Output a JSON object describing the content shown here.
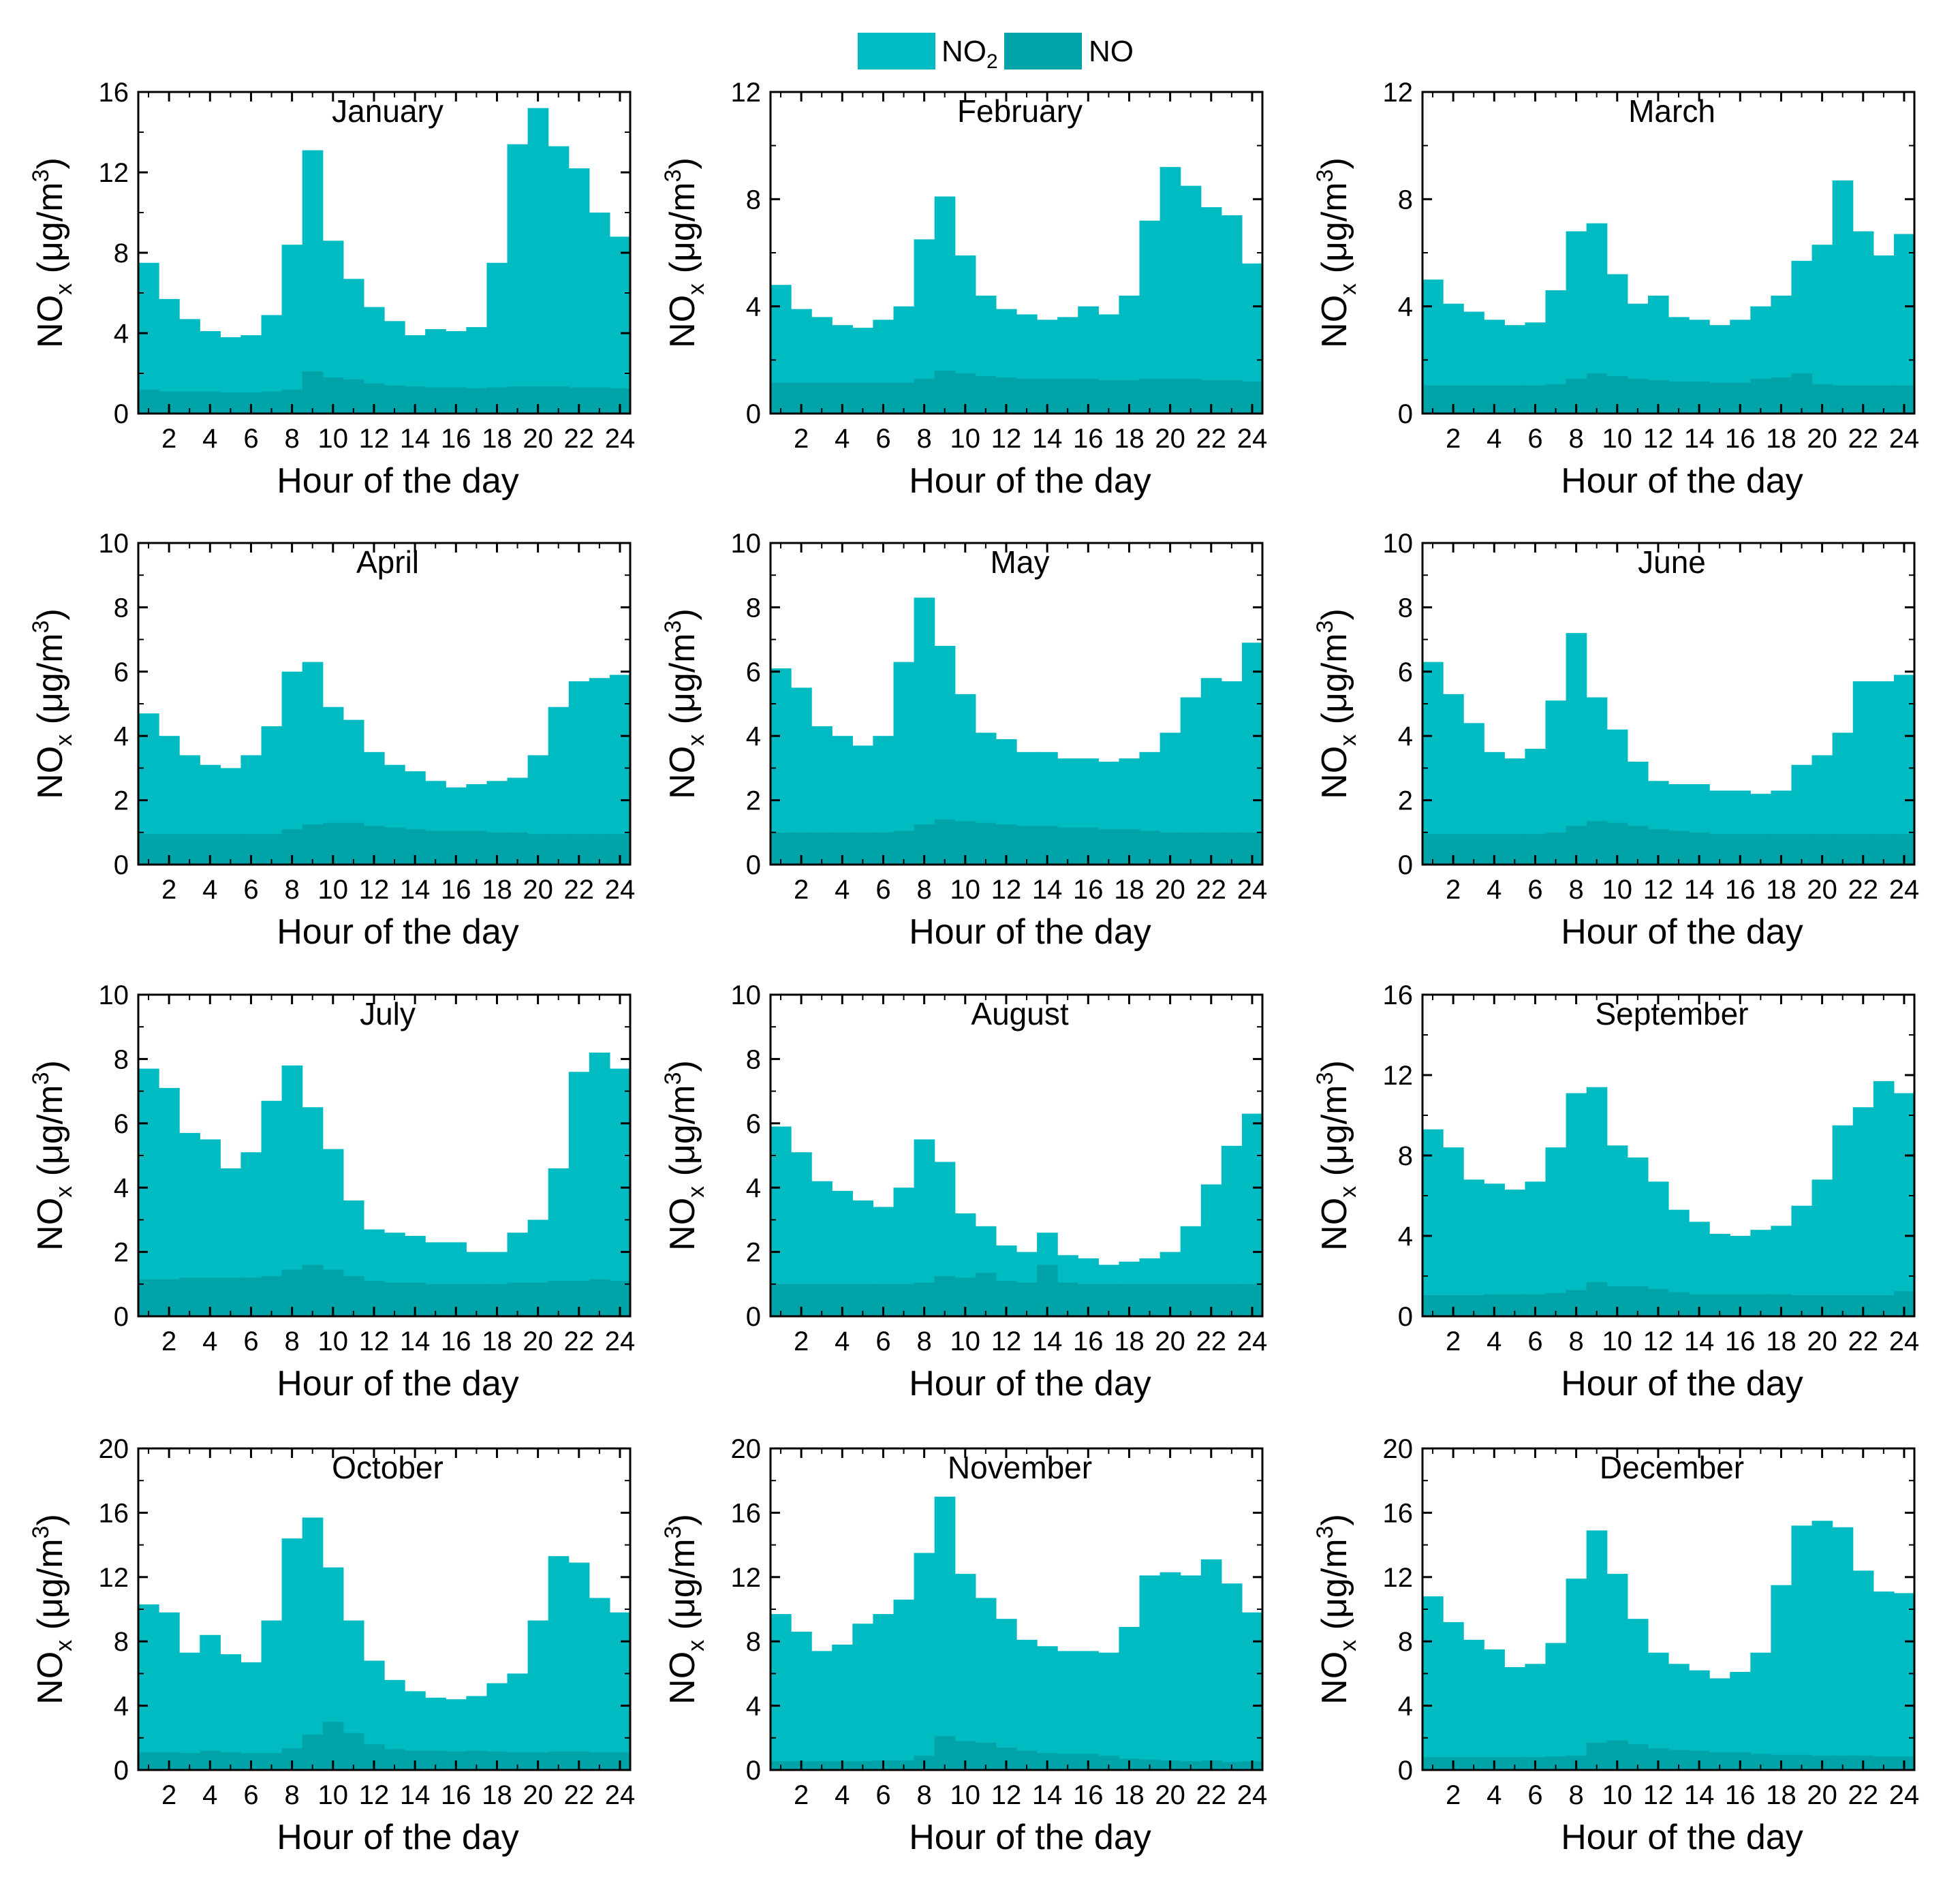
{
  "figure": {
    "legend": [
      {
        "label": "NO",
        "sub": "2",
        "color": "#00BCC2"
      },
      {
        "label": "NO",
        "sub": "",
        "color": "#00A3A8"
      }
    ],
    "xlabel": "Hour of the day",
    "ylabel_main": "NO",
    "ylabel_sub": "x",
    "ylabel_unit_pre": " (μg/m",
    "ylabel_unit_sup": "3",
    "ylabel_unit_post": ")",
    "x_ticks": [
      "2",
      "4",
      "6",
      "8",
      "10",
      "12",
      "14",
      "16",
      "18",
      "20",
      "22",
      "24"
    ]
  },
  "chart_data": [
    {
      "type": "area",
      "title": "January",
      "ylim": [
        0,
        16
      ],
      "yticks": [
        0,
        4,
        8,
        12,
        16
      ],
      "x": [
        1,
        2,
        3,
        4,
        5,
        6,
        7,
        8,
        9,
        10,
        11,
        12,
        13,
        14,
        15,
        16,
        17,
        18,
        19,
        20,
        21,
        22,
        23,
        24
      ],
      "series": [
        {
          "name": "NO2",
          "total": [
            7.5,
            5.7,
            4.7,
            4.1,
            3.8,
            3.9,
            4.9,
            8.4,
            13.1,
            8.6,
            6.7,
            5.3,
            4.6,
            3.9,
            4.2,
            4.1,
            4.3,
            7.5,
            13.4,
            15.2,
            13.3,
            12.2,
            10.0,
            8.8
          ]
        },
        {
          "name": "NO",
          "values": [
            1.2,
            1.1,
            1.1,
            1.1,
            1.05,
            1.05,
            1.1,
            1.2,
            2.1,
            1.8,
            1.7,
            1.5,
            1.4,
            1.35,
            1.3,
            1.3,
            1.25,
            1.3,
            1.35,
            1.35,
            1.35,
            1.3,
            1.3,
            1.25
          ]
        }
      ]
    },
    {
      "type": "area",
      "title": "February",
      "ylim": [
        0,
        12
      ],
      "yticks": [
        0,
        4,
        8,
        12
      ],
      "x": [
        1,
        2,
        3,
        4,
        5,
        6,
        7,
        8,
        9,
        10,
        11,
        12,
        13,
        14,
        15,
        16,
        17,
        18,
        19,
        20,
        21,
        22,
        23,
        24
      ],
      "series": [
        {
          "name": "NO2",
          "total": [
            4.8,
            3.9,
            3.6,
            3.3,
            3.2,
            3.5,
            4.0,
            6.5,
            8.1,
            5.9,
            4.4,
            3.9,
            3.7,
            3.5,
            3.6,
            4.0,
            3.7,
            4.4,
            7.2,
            9.2,
            8.5,
            7.7,
            7.4,
            5.6
          ]
        },
        {
          "name": "NO",
          "values": [
            1.15,
            1.15,
            1.15,
            1.15,
            1.15,
            1.15,
            1.15,
            1.3,
            1.6,
            1.5,
            1.4,
            1.35,
            1.3,
            1.3,
            1.3,
            1.3,
            1.25,
            1.25,
            1.3,
            1.3,
            1.3,
            1.25,
            1.25,
            1.2
          ]
        }
      ]
    },
    {
      "type": "area",
      "title": "March",
      "ylim": [
        0,
        12
      ],
      "yticks": [
        0,
        4,
        8,
        12
      ],
      "x": [
        1,
        2,
        3,
        4,
        5,
        6,
        7,
        8,
        9,
        10,
        11,
        12,
        13,
        14,
        15,
        16,
        17,
        18,
        19,
        20,
        21,
        22,
        23,
        24
      ],
      "series": [
        {
          "name": "NO2",
          "total": [
            5.0,
            4.1,
            3.8,
            3.5,
            3.3,
            3.4,
            4.6,
            6.8,
            7.1,
            5.2,
            4.1,
            4.4,
            3.6,
            3.5,
            3.3,
            3.5,
            4.0,
            4.4,
            5.7,
            6.3,
            8.7,
            6.8,
            5.9,
            6.7
          ]
        },
        {
          "name": "NO",
          "values": [
            1.05,
            1.05,
            1.05,
            1.05,
            1.05,
            1.05,
            1.1,
            1.3,
            1.5,
            1.4,
            1.3,
            1.25,
            1.2,
            1.2,
            1.15,
            1.15,
            1.3,
            1.35,
            1.5,
            1.1,
            1.05,
            1.05,
            1.05,
            1.05
          ]
        }
      ]
    },
    {
      "type": "area",
      "title": "April",
      "ylim": [
        0,
        10
      ],
      "yticks": [
        0,
        2,
        4,
        6,
        8,
        10
      ],
      "x": [
        1,
        2,
        3,
        4,
        5,
        6,
        7,
        8,
        9,
        10,
        11,
        12,
        13,
        14,
        15,
        16,
        17,
        18,
        19,
        20,
        21,
        22,
        23,
        24
      ],
      "series": [
        {
          "name": "NO2",
          "total": [
            4.7,
            4.0,
            3.4,
            3.1,
            3.0,
            3.4,
            4.3,
            6.0,
            6.3,
            4.9,
            4.5,
            3.5,
            3.1,
            2.9,
            2.6,
            2.4,
            2.5,
            2.6,
            2.7,
            3.4,
            4.9,
            5.7,
            5.8,
            5.9
          ]
        },
        {
          "name": "NO",
          "values": [
            0.95,
            0.95,
            0.95,
            0.95,
            0.95,
            0.95,
            0.95,
            1.1,
            1.25,
            1.3,
            1.3,
            1.2,
            1.15,
            1.1,
            1.05,
            1.05,
            1.05,
            1.0,
            1.0,
            0.95,
            0.95,
            0.95,
            0.95,
            0.95
          ]
        }
      ]
    },
    {
      "type": "area",
      "title": "May",
      "ylim": [
        0,
        10
      ],
      "yticks": [
        0,
        2,
        4,
        6,
        8,
        10
      ],
      "x": [
        1,
        2,
        3,
        4,
        5,
        6,
        7,
        8,
        9,
        10,
        11,
        12,
        13,
        14,
        15,
        16,
        17,
        18,
        19,
        20,
        21,
        22,
        23,
        24
      ],
      "series": [
        {
          "name": "NO2",
          "total": [
            6.1,
            5.5,
            4.3,
            4.0,
            3.7,
            4.0,
            6.3,
            8.3,
            6.8,
            5.3,
            4.1,
            3.9,
            3.5,
            3.5,
            3.3,
            3.3,
            3.2,
            3.3,
            3.5,
            4.1,
            5.2,
            5.8,
            5.7,
            6.9
          ]
        },
        {
          "name": "NO",
          "values": [
            1.0,
            1.0,
            1.0,
            1.0,
            1.0,
            1.0,
            1.05,
            1.25,
            1.4,
            1.35,
            1.3,
            1.25,
            1.2,
            1.2,
            1.15,
            1.15,
            1.1,
            1.1,
            1.05,
            1.0,
            1.0,
            1.0,
            1.0,
            1.0
          ]
        }
      ]
    },
    {
      "type": "area",
      "title": "June",
      "ylim": [
        0,
        10
      ],
      "yticks": [
        0,
        2,
        4,
        6,
        8,
        10
      ],
      "x": [
        1,
        2,
        3,
        4,
        5,
        6,
        7,
        8,
        9,
        10,
        11,
        12,
        13,
        14,
        15,
        16,
        17,
        18,
        19,
        20,
        21,
        22,
        23,
        24
      ],
      "series": [
        {
          "name": "NO2",
          "total": [
            6.3,
            5.3,
            4.4,
            3.5,
            3.3,
            3.6,
            5.1,
            7.2,
            5.2,
            4.2,
            3.2,
            2.6,
            2.5,
            2.5,
            2.3,
            2.3,
            2.2,
            2.3,
            3.1,
            3.4,
            4.1,
            5.7,
            5.7,
            5.9
          ]
        },
        {
          "name": "NO",
          "values": [
            0.95,
            0.95,
            0.95,
            0.95,
            0.95,
            0.95,
            1.0,
            1.2,
            1.35,
            1.3,
            1.2,
            1.1,
            1.05,
            1.0,
            0.95,
            0.95,
            0.95,
            0.95,
            0.95,
            0.95,
            0.95,
            0.95,
            0.95,
            0.95
          ]
        }
      ]
    },
    {
      "type": "area",
      "title": "July",
      "ylim": [
        0,
        10
      ],
      "yticks": [
        0,
        2,
        4,
        6,
        8,
        10
      ],
      "x": [
        1,
        2,
        3,
        4,
        5,
        6,
        7,
        8,
        9,
        10,
        11,
        12,
        13,
        14,
        15,
        16,
        17,
        18,
        19,
        20,
        21,
        22,
        23,
        24
      ],
      "series": [
        {
          "name": "NO2",
          "total": [
            7.7,
            7.1,
            5.7,
            5.5,
            4.6,
            5.1,
            6.7,
            7.8,
            6.5,
            5.2,
            3.6,
            2.7,
            2.6,
            2.5,
            2.3,
            2.3,
            2.0,
            2.0,
            2.6,
            3.0,
            4.6,
            7.6,
            8.2,
            7.7
          ]
        },
        {
          "name": "NO",
          "values": [
            1.15,
            1.15,
            1.2,
            1.2,
            1.2,
            1.2,
            1.25,
            1.45,
            1.6,
            1.45,
            1.25,
            1.1,
            1.05,
            1.05,
            1.0,
            1.0,
            1.0,
            1.0,
            1.05,
            1.05,
            1.1,
            1.1,
            1.15,
            1.1
          ]
        }
      ]
    },
    {
      "type": "area",
      "title": "August",
      "ylim": [
        0,
        10
      ],
      "yticks": [
        0,
        2,
        4,
        6,
        8,
        10
      ],
      "x": [
        1,
        2,
        3,
        4,
        5,
        6,
        7,
        8,
        9,
        10,
        11,
        12,
        13,
        14,
        15,
        16,
        17,
        18,
        19,
        20,
        21,
        22,
        23,
        24
      ],
      "series": [
        {
          "name": "NO2",
          "total": [
            5.9,
            5.1,
            4.2,
            3.9,
            3.6,
            3.4,
            4.0,
            5.5,
            4.8,
            3.2,
            2.8,
            2.2,
            2.0,
            2.6,
            1.9,
            1.8,
            1.6,
            1.7,
            1.8,
            2.0,
            2.8,
            4.1,
            5.3,
            6.3
          ]
        },
        {
          "name": "NO",
          "values": [
            1.0,
            1.0,
            1.0,
            1.0,
            1.0,
            1.0,
            1.0,
            1.05,
            1.25,
            1.2,
            1.35,
            1.1,
            1.05,
            1.6,
            1.05,
            1.0,
            1.0,
            1.0,
            1.0,
            1.0,
            1.0,
            1.0,
            1.0,
            1.0
          ]
        }
      ]
    },
    {
      "type": "area",
      "title": "September",
      "ylim": [
        0,
        16
      ],
      "yticks": [
        0,
        4,
        8,
        12,
        16
      ],
      "x": [
        1,
        2,
        3,
        4,
        5,
        6,
        7,
        8,
        9,
        10,
        11,
        12,
        13,
        14,
        15,
        16,
        17,
        18,
        19,
        20,
        21,
        22,
        23,
        24
      ],
      "series": [
        {
          "name": "NO2",
          "total": [
            9.3,
            8.4,
            6.8,
            6.6,
            6.3,
            6.7,
            8.4,
            11.1,
            11.4,
            8.5,
            7.9,
            6.7,
            5.3,
            4.7,
            4.1,
            4.0,
            4.3,
            4.5,
            5.5,
            6.8,
            9.5,
            10.4,
            11.7,
            11.1
          ]
        },
        {
          "name": "NO",
          "values": [
            1.05,
            1.05,
            1.05,
            1.1,
            1.1,
            1.1,
            1.15,
            1.3,
            1.7,
            1.5,
            1.5,
            1.35,
            1.2,
            1.1,
            1.1,
            1.1,
            1.1,
            1.1,
            1.05,
            1.05,
            1.05,
            1.05,
            1.05,
            1.25
          ]
        }
      ]
    },
    {
      "type": "area",
      "title": "October",
      "ylim": [
        0,
        20
      ],
      "yticks": [
        0,
        4,
        8,
        12,
        16,
        20
      ],
      "x": [
        1,
        2,
        3,
        4,
        5,
        6,
        7,
        8,
        9,
        10,
        11,
        12,
        13,
        14,
        15,
        16,
        17,
        18,
        19,
        20,
        21,
        22,
        23,
        24
      ],
      "series": [
        {
          "name": "NO2",
          "total": [
            10.3,
            9.8,
            7.3,
            8.4,
            7.2,
            6.7,
            9.3,
            14.4,
            15.7,
            12.6,
            9.3,
            6.8,
            5.6,
            4.9,
            4.5,
            4.4,
            4.6,
            5.4,
            6.0,
            9.3,
            13.3,
            12.9,
            10.7,
            9.8
          ]
        },
        {
          "name": "NO",
          "values": [
            1.1,
            1.1,
            1.05,
            1.2,
            1.1,
            1.05,
            1.05,
            1.35,
            2.2,
            3.0,
            2.3,
            1.6,
            1.3,
            1.2,
            1.2,
            1.15,
            1.2,
            1.15,
            1.1,
            1.1,
            1.15,
            1.15,
            1.1,
            1.1
          ]
        }
      ]
    },
    {
      "type": "area",
      "title": "November",
      "ylim": [
        0,
        20
      ],
      "yticks": [
        0,
        4,
        8,
        12,
        16,
        20
      ],
      "x": [
        1,
        2,
        3,
        4,
        5,
        6,
        7,
        8,
        9,
        10,
        11,
        12,
        13,
        14,
        15,
        16,
        17,
        18,
        19,
        20,
        21,
        22,
        23,
        24
      ],
      "series": [
        {
          "name": "NO2",
          "total": [
            9.7,
            8.6,
            7.4,
            7.8,
            9.1,
            9.7,
            10.6,
            13.5,
            17.0,
            12.2,
            10.7,
            9.4,
            8.1,
            7.7,
            7.4,
            7.4,
            7.3,
            8.9,
            12.1,
            12.3,
            12.1,
            13.1,
            11.6,
            9.8
          ]
        },
        {
          "name": "NO",
          "values": [
            0.55,
            0.55,
            0.55,
            0.55,
            0.55,
            0.6,
            0.6,
            0.9,
            2.1,
            1.8,
            1.7,
            1.4,
            1.2,
            1.05,
            1.0,
            1.0,
            0.9,
            0.7,
            0.65,
            0.6,
            0.55,
            0.6,
            0.5,
            0.55
          ]
        }
      ]
    },
    {
      "type": "area",
      "title": "December",
      "ylim": [
        0,
        20
      ],
      "yticks": [
        0,
        4,
        8,
        12,
        16,
        20
      ],
      "x": [
        1,
        2,
        3,
        4,
        5,
        6,
        7,
        8,
        9,
        10,
        11,
        12,
        13,
        14,
        15,
        16,
        17,
        18,
        19,
        20,
        21,
        22,
        23,
        24
      ],
      "series": [
        {
          "name": "NO2",
          "total": [
            10.8,
            9.2,
            8.1,
            7.5,
            6.4,
            6.6,
            7.9,
            11.9,
            14.9,
            12.2,
            9.4,
            7.3,
            6.6,
            6.2,
            5.7,
            6.1,
            7.3,
            11.5,
            15.2,
            15.5,
            15.1,
            12.4,
            11.1,
            11.0
          ]
        },
        {
          "name": "NO",
          "values": [
            0.8,
            0.8,
            0.8,
            0.8,
            0.8,
            0.8,
            0.85,
            0.9,
            1.7,
            1.85,
            1.6,
            1.35,
            1.25,
            1.2,
            1.1,
            1.1,
            1.0,
            0.95,
            0.95,
            0.9,
            0.9,
            0.9,
            0.85,
            0.85
          ]
        }
      ]
    }
  ]
}
